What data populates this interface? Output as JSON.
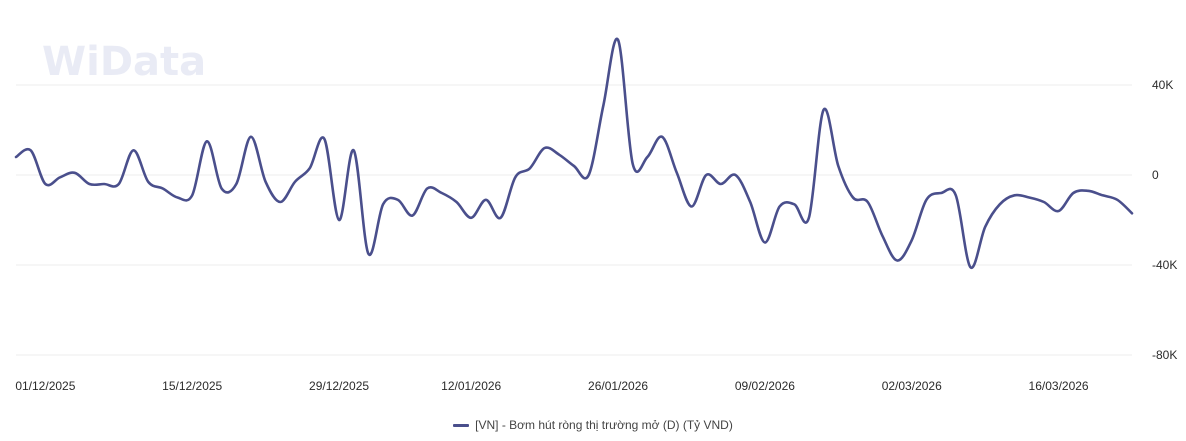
{
  "watermark": "WiData",
  "chart_data": {
    "type": "line",
    "legend_position": "bottom-center",
    "grid": "horizontal",
    "ylim": [
      -80000,
      80000
    ],
    "y_ticks": [
      {
        "value": 40000,
        "label": "40K"
      },
      {
        "value": 0,
        "label": "0"
      },
      {
        "value": -40000,
        "label": "-40K"
      },
      {
        "value": -80000,
        "label": "-80K"
      }
    ],
    "x_tick_labels": [
      "01/12/2025",
      "15/12/2025",
      "29/12/2025",
      "12/01/2026",
      "26/01/2026",
      "09/02/2026",
      "02/03/2026",
      "16/03/2026"
    ],
    "series": [
      {
        "name": "[VN] - Bơm hút ròng thị trường mở (D) (Tỷ VND)",
        "color": "#4a4f8c",
        "x": [
          "27/11/2025",
          "28/11/2025",
          "01/12/2025",
          "02/12/2025",
          "03/12/2025",
          "04/12/2025",
          "05/12/2025",
          "08/12/2025",
          "09/12/2025",
          "10/12/2025",
          "11/12/2025",
          "12/12/2025",
          "15/12/2025",
          "16/12/2025",
          "17/12/2025",
          "18/12/2025",
          "19/12/2025",
          "22/12/2025",
          "23/12/2025",
          "24/12/2025",
          "25/12/2025",
          "26/12/2025",
          "29/12/2025",
          "30/12/2025",
          "31/12/2025",
          "02/01/2026",
          "05/01/2026",
          "06/01/2026",
          "07/01/2026",
          "08/01/2026",
          "09/01/2026",
          "12/01/2026",
          "13/01/2026",
          "14/01/2026",
          "15/01/2026",
          "16/01/2026",
          "19/01/2026",
          "20/01/2026",
          "21/01/2026",
          "22/01/2026",
          "23/01/2026",
          "26/01/2026",
          "27/01/2026",
          "28/01/2026",
          "29/01/2026",
          "30/01/2026",
          "02/02/2026",
          "03/02/2026",
          "04/02/2026",
          "05/02/2026",
          "06/02/2026",
          "09/02/2026",
          "10/02/2026",
          "11/02/2026",
          "12/02/2026",
          "13/02/2026",
          "23/02/2026",
          "24/02/2026",
          "25/02/2026",
          "26/02/2026",
          "27/02/2026",
          "02/03/2026",
          "03/03/2026",
          "04/03/2026",
          "05/03/2026",
          "06/03/2026",
          "09/03/2026",
          "10/03/2026",
          "11/03/2026",
          "12/03/2026",
          "13/03/2026",
          "16/03/2026",
          "17/03/2026",
          "18/03/2026",
          "19/03/2026",
          "20/03/2026",
          "23/03/2026"
        ],
        "values": [
          8000,
          11000,
          -4000,
          -1000,
          1000,
          -4000,
          -4000,
          -4000,
          11000,
          -3000,
          -6000,
          -10000,
          -9000,
          15000,
          -6000,
          -4000,
          17000,
          -3000,
          -12000,
          -3000,
          3000,
          16000,
          -20000,
          11000,
          -35000,
          -13000,
          -11000,
          -18000,
          -6000,
          -8000,
          -12000,
          -19000,
          -11000,
          -19000,
          -1000,
          3000,
          12000,
          9000,
          4000,
          0,
          31000,
          60000,
          5000,
          8000,
          17000,
          1000,
          -14000,
          0,
          -4000,
          0,
          -12000,
          -30000,
          -14000,
          -13000,
          -19000,
          29000,
          4000,
          -10000,
          -12000,
          -27000,
          -38000,
          -29000,
          -11000,
          -8000,
          -9000,
          -41000,
          -23000,
          -13000,
          -9000,
          -10000,
          -12000,
          -16000,
          -8000,
          -7000,
          -9000,
          -11000,
          -17000
        ]
      }
    ]
  }
}
